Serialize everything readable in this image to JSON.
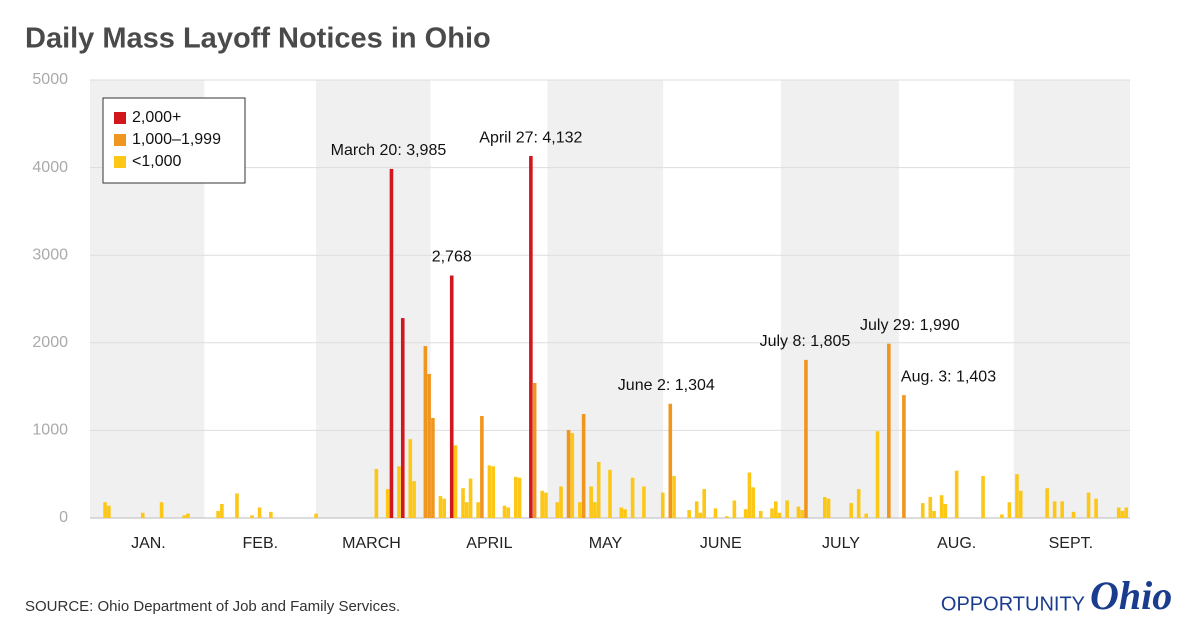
{
  "chart_data": {
    "type": "bar",
    "title": "Daily Mass Layoff Notices in Ohio",
    "source": "SOURCE: Ohio Department of Job and Family Services.",
    "logo": [
      "OPPORTUNITY",
      "Ohio"
    ],
    "xlim": [
      0,
      276
    ],
    "xticks": [
      {
        "value": 15.5,
        "label": "JAN."
      },
      {
        "value": 45.2,
        "label": "FEB."
      },
      {
        "value": 74.7,
        "label": "MARCH"
      },
      {
        "value": 106,
        "label": "APRIL"
      },
      {
        "value": 136.8,
        "label": "MAY"
      },
      {
        "value": 167.4,
        "label": "JUNE"
      },
      {
        "value": 199.3,
        "label": "JULY"
      },
      {
        "value": 230,
        "label": "AUG."
      },
      {
        "value": 260.3,
        "label": "SEPT."
      }
    ],
    "ylim": [
      0,
      5000
    ],
    "yticks": [
      0,
      1000,
      2000,
      3000,
      4000,
      5000
    ],
    "grid": true,
    "legend": "top-left",
    "series": [
      {
        "name": "2,000+",
        "color": "#d2171c",
        "x": [
          80,
          83,
          96,
          117
        ],
        "values": [
          3985,
          2282,
          2768,
          4132
        ]
      },
      {
        "name": "1,000–1,999",
        "color": "#f0961e",
        "x": [
          89,
          90,
          91,
          104,
          118,
          127,
          131,
          154,
          190,
          212,
          216
        ],
        "values": [
          1963,
          1644,
          1142,
          1164,
          1541,
          1005,
          1187,
          1304,
          1805,
          1990,
          1403
        ]
      },
      {
        "name": "<1,000",
        "color": "#fcc716",
        "x": [
          4,
          5,
          14,
          19,
          25,
          26,
          34,
          35,
          39,
          43,
          45,
          48,
          60,
          76,
          79,
          82,
          85,
          86,
          93,
          94,
          97,
          99,
          100,
          101,
          103,
          106,
          107,
          110,
          111,
          113,
          114,
          120,
          121,
          124,
          125,
          128,
          130,
          133,
          134,
          135,
          138,
          141,
          142,
          144,
          147,
          152,
          155,
          159,
          161,
          162,
          163,
          166,
          169,
          171,
          174,
          175,
          176,
          178,
          181,
          182,
          183,
          185,
          188,
          189,
          195,
          196,
          202,
          204,
          206,
          209,
          221,
          223,
          224,
          226,
          227,
          230,
          237,
          242,
          244,
          246,
          247,
          254,
          256,
          258,
          261,
          265,
          267,
          273,
          274,
          275
        ],
        "values": [
          180,
          140,
          60,
          180,
          30,
          50,
          80,
          160,
          280,
          30,
          120,
          70,
          50,
          560,
          330,
          590,
          900,
          420,
          250,
          220,
          830,
          340,
          180,
          450,
          180,
          600,
          590,
          140,
          120,
          470,
          460,
          310,
          290,
          180,
          360,
          970,
          180,
          360,
          180,
          640,
          550,
          120,
          100,
          460,
          360,
          290,
          480,
          90,
          190,
          60,
          330,
          110,
          20,
          200,
          100,
          520,
          350,
          80,
          110,
          190,
          60,
          200,
          130,
          90,
          240,
          220,
          170,
          330,
          50,
          990,
          170,
          240,
          80,
          260,
          160,
          540,
          480,
          40,
          180,
          500,
          310,
          340,
          190,
          190,
          70,
          290,
          220,
          120,
          80,
          120
        ]
      }
    ],
    "annotations": [
      {
        "text": "March 20: 3,985",
        "x": 80,
        "y": 3985
      },
      {
        "text": "2,768",
        "x": 96,
        "y": 2768
      },
      {
        "text": "April 27: 4,132",
        "x": 117,
        "y": 4132
      },
      {
        "text": "June 2: 1,304",
        "x": 154,
        "y": 1304
      },
      {
        "text": "July 8: 1,805",
        "x": 190,
        "y": 1805
      },
      {
        "text": "July 29: 1,990",
        "x": 212,
        "y": 1990
      },
      {
        "text": "Aug. 3: 1,403",
        "x": 216,
        "y": 1403
      }
    ]
  }
}
